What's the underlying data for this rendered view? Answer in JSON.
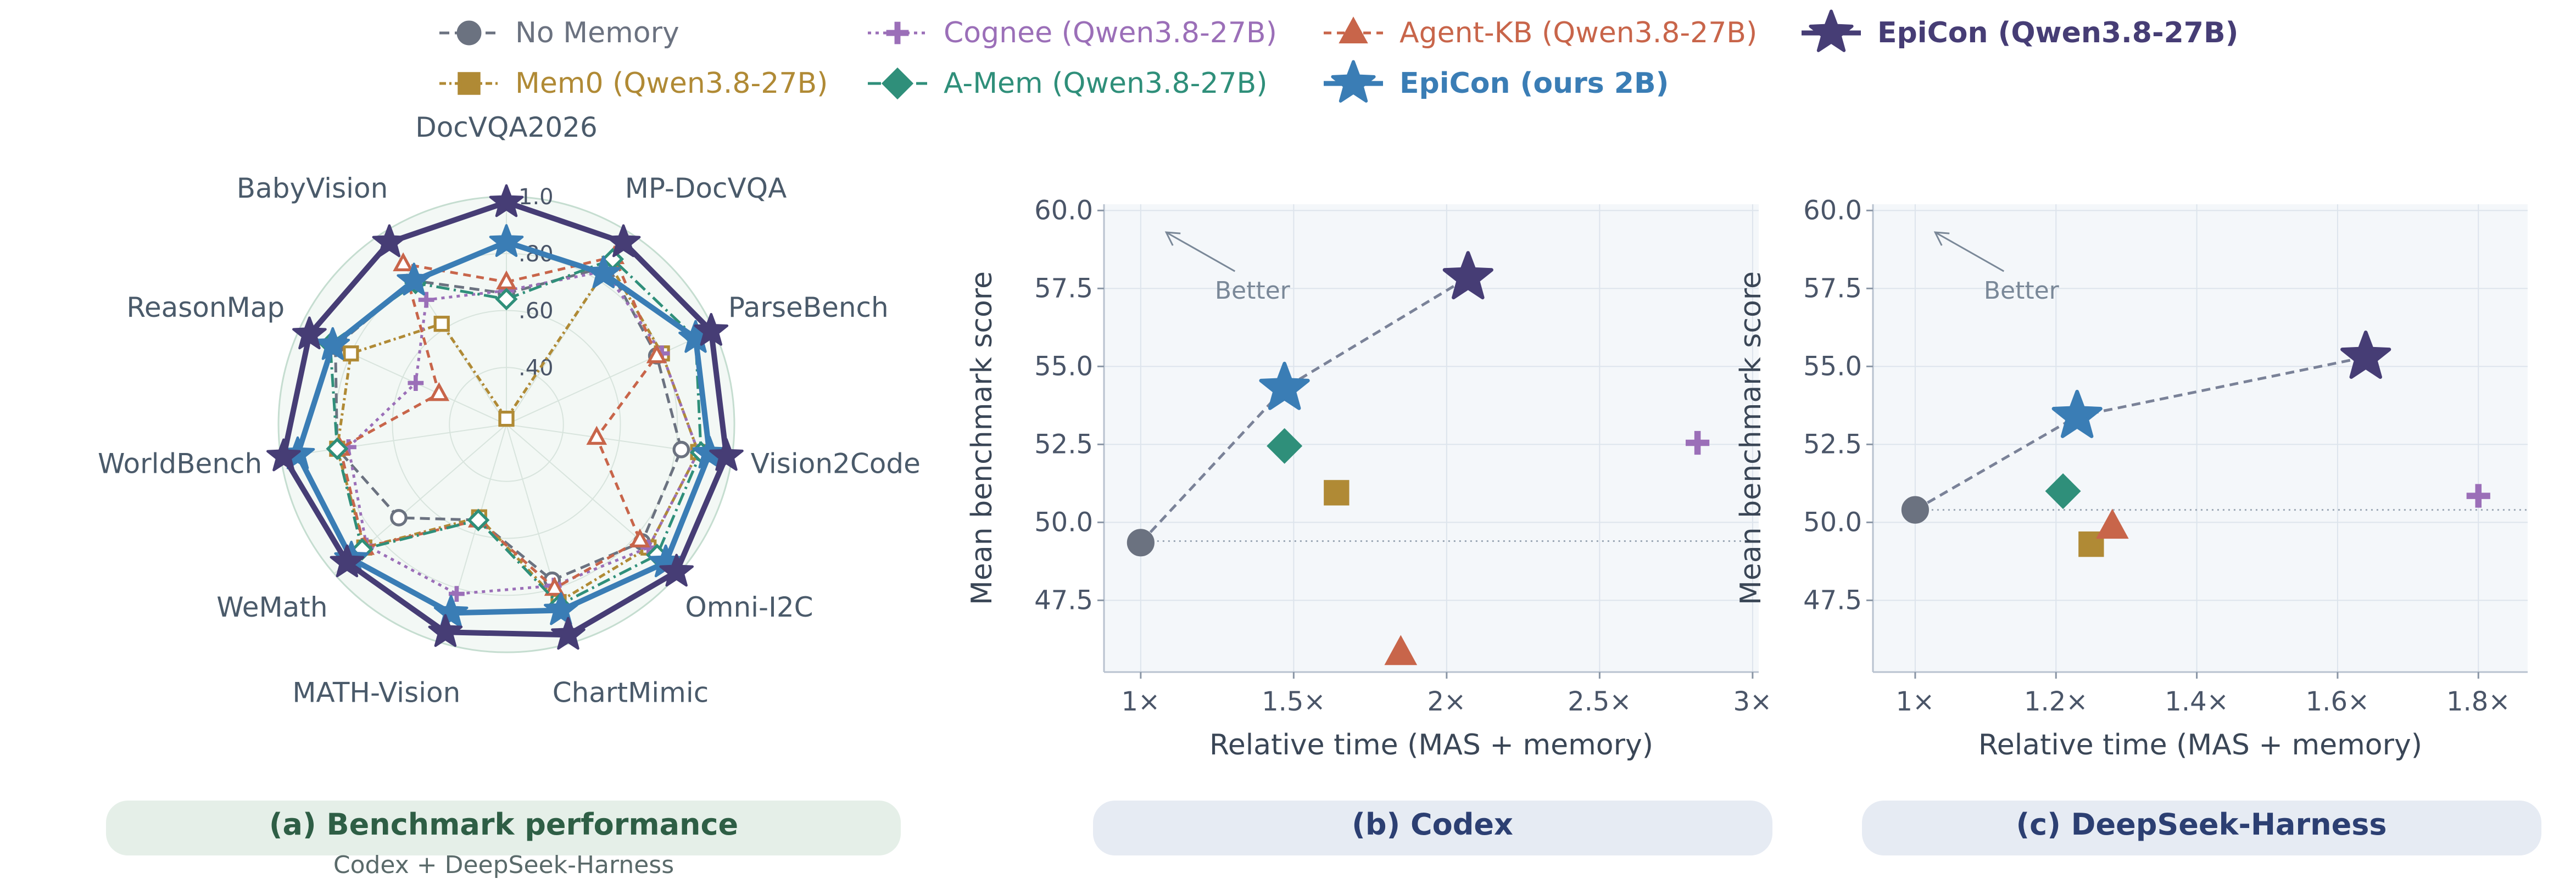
{
  "legend": [
    {
      "key": "nomem",
      "label": "No Memory",
      "color": "#6b7280",
      "dash": "18,10",
      "marker": "circle",
      "bold": false
    },
    {
      "key": "cognee",
      "label": "Cognee (Qwen3.8-27B)",
      "color": "#9b6fb8",
      "dash": "6,8",
      "marker": "plus",
      "bold": false
    },
    {
      "key": "agentkb",
      "label": "Agent-KB (Qwen3.8-27B)",
      "color": "#c8654a",
      "dash": "14,10",
      "marker": "triangle",
      "bold": false
    },
    {
      "key": "epicon_q",
      "label": "EpiCon (Qwen3.8-27B)",
      "color": "#463d75",
      "dash": "",
      "marker": "star",
      "bold": true
    },
    {
      "key": "mem0",
      "label": "Mem0 (Qwen3.8-27B)",
      "color": "#b08a35",
      "dash": "12,6,4,6",
      "marker": "square",
      "bold": false
    },
    {
      "key": "amem",
      "label": "A-Mem (Qwen3.8-27B)",
      "color": "#2f8f7a",
      "dash": "24,8,4,8",
      "marker": "diamond",
      "bold": false
    },
    {
      "key": "epicon_2b",
      "label": "EpiCon (ours 2B)",
      "color": "#3a7db5",
      "dash": "",
      "marker": "star",
      "bold": true
    }
  ],
  "chart_data": [
    {
      "type": "radar",
      "categories": [
        "DocVQA2026",
        "MP-DocVQA",
        "ParseBench",
        "Vision2Code",
        "Omni-I2C",
        "ChartMimic",
        "MATH-Vision",
        "WeMath",
        "WorldBench",
        "ReasonMap",
        "BabyVision"
      ],
      "rlim": [
        0.2,
        1.0
      ],
      "rticks": [
        ".40",
        ".60",
        ".80",
        "1.0"
      ],
      "rtick_values": [
        0.4,
        0.6,
        0.8,
        1.0
      ],
      "series": [
        {
          "name": "No Memory",
          "values": [
            0.66,
            0.86,
            0.78,
            0.82,
            0.83,
            0.77,
            0.55,
            0.7,
            0.8,
            0.86,
            0.8
          ]
        },
        {
          "name": "Cognee (Qwen3.8-27B)",
          "values": [
            0.67,
            0.84,
            0.8,
            0.88,
            0.86,
            0.79,
            0.82,
            0.85,
            0.76,
            0.55,
            0.72
          ]
        },
        {
          "name": "Agent-KB (Qwen3.8-27B)",
          "values": [
            0.7,
            0.9,
            0.78,
            0.52,
            0.82,
            0.8,
            0.55,
            0.86,
            0.79,
            0.46,
            0.87
          ]
        },
        {
          "name": "EpiCon (Qwen3.8-27B)",
          "values": [
            0.98,
            0.96,
            0.99,
            0.98,
            0.99,
            0.97,
            0.96,
            0.94,
            0.99,
            0.96,
            0.96
          ]
        },
        {
          "name": "Mem0 (Qwen3.8-27B)",
          "values": [
            0.22,
            0.87,
            0.8,
            0.88,
            0.86,
            0.85,
            0.54,
            0.86,
            0.8,
            0.8,
            0.62
          ]
        },
        {
          "name": "A-Mem (Qwen3.8-27B)",
          "values": [
            0.64,
            0.89,
            0.93,
            0.89,
            0.9,
            0.86,
            0.55,
            0.87,
            0.8,
            0.88,
            0.79
          ]
        },
        {
          "name": "EpiCon (ours 2B)",
          "values": [
            0.84,
            0.83,
            0.93,
            0.92,
            0.94,
            0.88,
            0.89,
            0.92,
            0.94,
            0.87,
            0.8
          ]
        }
      ],
      "title": "(a) Benchmark performance",
      "subtitle": "Codex + DeepSeek-Harness"
    },
    {
      "type": "scatter",
      "title": "(b) Codex",
      "xlabel": "Relative time (MAS + memory)",
      "ylabel": "Mean benchmark score",
      "xlim": [
        0.88,
        3.02
      ],
      "ylim": [
        45.2,
        60.2
      ],
      "xticks": [
        1.0,
        1.5,
        2.0,
        2.5,
        3.0
      ],
      "xtick_labels": [
        "1×",
        "1.5×",
        "2×",
        "2.5×",
        "3×"
      ],
      "yticks": [
        47.5,
        50.0,
        52.5,
        55.0,
        57.5,
        60.0
      ],
      "ytick_labels": [
        "47.5",
        "50.0",
        "52.5",
        "55.0",
        "57.5",
        "60.0"
      ],
      "baseline": 49.4,
      "annotation": "Better",
      "points": [
        {
          "series": "No Memory",
          "x": 1.0,
          "y": 49.35
        },
        {
          "series": "EpiCon (ours 2B)",
          "x": 1.47,
          "y": 54.3
        },
        {
          "series": "A-Mem (Qwen3.8-27B)",
          "x": 1.47,
          "y": 52.45
        },
        {
          "series": "Mem0 (Qwen3.8-27B)",
          "x": 1.64,
          "y": 50.95
        },
        {
          "series": "Agent-KB (Qwen3.8-27B)",
          "x": 1.85,
          "y": 45.8
        },
        {
          "series": "EpiCon (Qwen3.8-27B)",
          "x": 2.07,
          "y": 57.85
        },
        {
          "series": "Cognee (Qwen3.8-27B)",
          "x": 2.82,
          "y": 52.55
        }
      ],
      "frontier": [
        "No Memory",
        "EpiCon (ours 2B)",
        "EpiCon (Qwen3.8-27B)"
      ]
    },
    {
      "type": "scatter",
      "title": "(c) DeepSeek-Harness",
      "xlabel": "Relative time (MAS + memory)",
      "ylabel": "Mean benchmark score",
      "xlim": [
        0.94,
        1.87
      ],
      "ylim": [
        45.2,
        60.2
      ],
      "xticks": [
        1.0,
        1.2,
        1.4,
        1.6,
        1.8
      ],
      "xtick_labels": [
        "1×",
        "1.2×",
        "1.4×",
        "1.6×",
        "1.8×"
      ],
      "yticks": [
        47.5,
        50.0,
        52.5,
        55.0,
        57.5,
        60.0
      ],
      "ytick_labels": [
        "47.5",
        "50.0",
        "52.5",
        "55.0",
        "57.5",
        "60.0"
      ],
      "baseline": 50.4,
      "annotation": "Better",
      "points": [
        {
          "series": "No Memory",
          "x": 1.0,
          "y": 50.4
        },
        {
          "series": "A-Mem (Qwen3.8-27B)",
          "x": 1.21,
          "y": 51.0
        },
        {
          "series": "EpiCon (ours 2B)",
          "x": 1.23,
          "y": 53.4
        },
        {
          "series": "Mem0 (Qwen3.8-27B)",
          "x": 1.25,
          "y": 49.3
        },
        {
          "series": "Agent-KB (Qwen3.8-27B)",
          "x": 1.28,
          "y": 49.85
        },
        {
          "series": "EpiCon (Qwen3.8-27B)",
          "x": 1.64,
          "y": 55.3
        },
        {
          "series": "Cognee (Qwen3.8-27B)",
          "x": 1.8,
          "y": 50.85
        }
      ],
      "frontier": [
        "No Memory",
        "EpiCon (ours 2B)",
        "EpiCon (Qwen3.8-27B)"
      ]
    }
  ]
}
